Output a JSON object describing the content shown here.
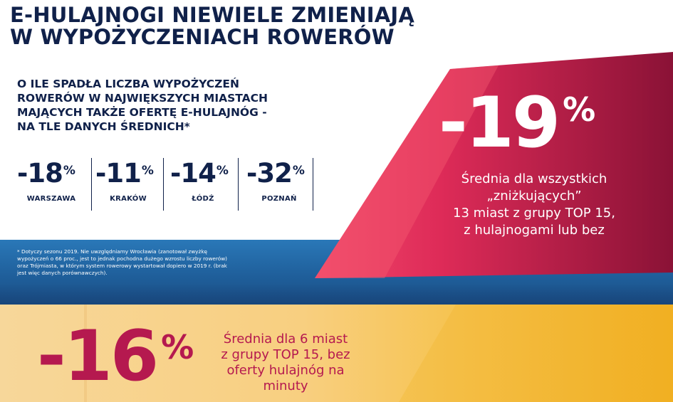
{
  "headline": {
    "line1": "E-HULAJNOGI NIEWIELE ZMIENIAJĄ",
    "line2": "W WYPOŻYCZENIACH ROWERÓW"
  },
  "question": {
    "line1": "O ILE SPADŁA LICZBA WYPOŻYCZEŃ",
    "line2": "ROWERÓW W NAJWIĘKSZYCH MIASTACH",
    "line3": "MAJĄCYCH TAKŻE OFERTĘ E-HULAJNÓG -",
    "line4": "NA TLE DANYCH ŚREDNICH*"
  },
  "footnote": "* Dotyczy sezonu 2019. Nie uwzględniamy Wrocławia (zanotował zwyżkę wypożyczeń o 66 proc., jest to jednak pochodna dużego wzrostu liczby rowerów) oraz Trójmiasta, w którym system rowerowy wystartował dopiero w 2019 r. (brak jest więc danych porównawczych).",
  "colors": {
    "navy": "#10214a",
    "crimson": "#b5194f",
    "pink": "#e8335f",
    "blue": "#2a78b8",
    "yellow": "#f6c24c"
  },
  "chart_data": {
    "type": "table",
    "unit": "%",
    "cities": [
      {
        "value": "-18",
        "label": "WARSZAWA"
      },
      {
        "value": "-11",
        "label": "KRAKÓW"
      },
      {
        "value": "-14",
        "label": "ŁÓDŹ"
      },
      {
        "value": "-32",
        "label": "POZNAŃ"
      }
    ],
    "average_scooter_cities": {
      "value": "-19",
      "line1": "Średnia dla wszystkich",
      "line2": "„zniżkujących”",
      "line3": "13 miast z grupy TOP 15,",
      "line4": "z hulajnogami lub bez"
    },
    "average_no_scooter_cities": {
      "value": "-16",
      "line1": "Średnia dla 6 miast",
      "line2": "z grupy TOP 15, bez",
      "line3": "oferty hulajnóg na",
      "line4": "minuty"
    }
  }
}
